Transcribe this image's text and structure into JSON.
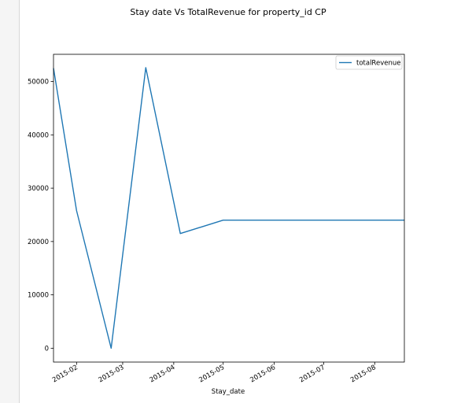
{
  "chart_data": {
    "type": "line",
    "title": "Stay date Vs TotalRevenue for property_id CP",
    "xlabel": "Stay_date",
    "ylabel": "",
    "x_tick_labels": [
      "2015-02",
      "2015-03",
      "2015-04",
      "2015-05",
      "2015-06",
      "2015-07",
      "2015-08"
    ],
    "y_tick_labels": [
      "0",
      "10000",
      "20000",
      "30000",
      "40000",
      "50000"
    ],
    "y_ticks": [
      0,
      10000,
      20000,
      30000,
      40000,
      50000
    ],
    "x_ticks": [
      "2015-02-01",
      "2015-03-01",
      "2015-04-01",
      "2015-05-01",
      "2015-06-01",
      "2015-07-01",
      "2015-08-01"
    ],
    "xlim": [
      "2015-01-18",
      "2015-08-19"
    ],
    "ylim": [
      -2600,
      55100
    ],
    "grid": false,
    "legend_position": "upper right",
    "series": [
      {
        "name": "totalRevenue",
        "color": "#1f77b4",
        "x": [
          "2015-01-18",
          "2015-02-01",
          "2015-02-22",
          "2015-03-15",
          "2015-04-05",
          "2015-05-01",
          "2015-08-19"
        ],
        "y": [
          52500,
          25800,
          0,
          52600,
          21500,
          24000,
          24000
        ]
      }
    ]
  }
}
